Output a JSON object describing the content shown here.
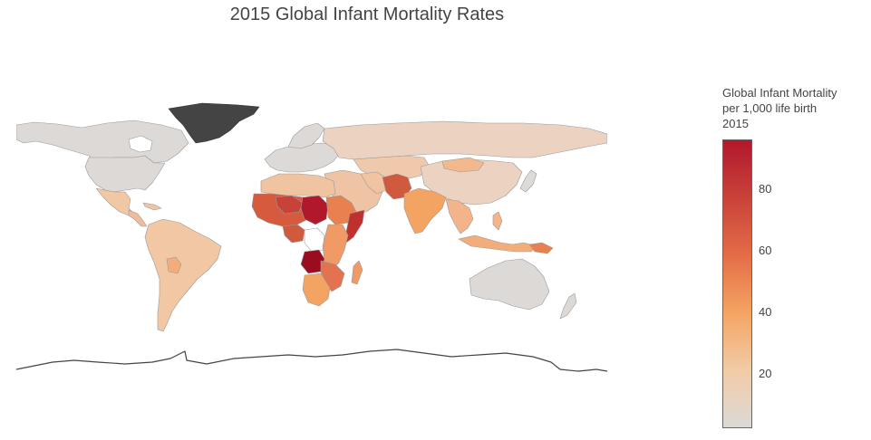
{
  "title": "2015 Global Infant Mortality Rates",
  "legend": {
    "title_lines": [
      "Global Infant Mortality",
      "per 1,000 life birth",
      "2015"
    ],
    "ticks": [
      "80",
      "60",
      "40",
      "20"
    ],
    "tick_values": [
      80,
      60,
      40,
      20
    ],
    "min": 2,
    "max": 96,
    "colorscale": [
      "#dcd9d6",
      "#f2cba6",
      "#f4a462",
      "#e46c48",
      "#c9423a",
      "#b2182b"
    ]
  },
  "colors": {
    "no_data": "#ffffff",
    "greenland": "#444444",
    "border": "#9a9a9a",
    "coast": "#444444"
  }
}
